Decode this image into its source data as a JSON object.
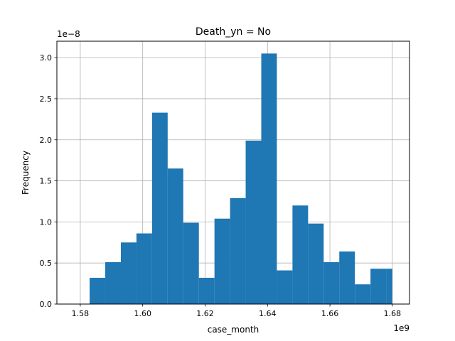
{
  "chart_data": {
    "type": "bar",
    "title": "Death_yn = No",
    "xlabel": "case_month",
    "ylabel": "Frequency",
    "x_offset_label": "1e9",
    "y_offset_label": "1e−8",
    "xlim": [
      1.5725,
      1.6855
    ],
    "ylim": [
      0.0,
      3.2
    ],
    "x_ticks": [
      1.58,
      1.6,
      1.62,
      1.64,
      1.66,
      1.68
    ],
    "x_tick_labels": [
      "1.58",
      "1.60",
      "1.62",
      "1.64",
      "1.66",
      "1.68"
    ],
    "y_ticks": [
      0.0,
      0.5,
      1.0,
      1.5,
      2.0,
      2.5,
      3.0
    ],
    "y_tick_labels": [
      "0.0",
      "0.5",
      "1.0",
      "1.5",
      "2.0",
      "2.5",
      "3.0"
    ],
    "grid": true,
    "bar_color": "#1f77b4",
    "bin_edges": [
      1.583,
      1.588,
      1.593,
      1.598,
      1.603,
      1.608,
      1.613,
      1.618,
      1.623,
      1.628,
      1.633,
      1.638,
      1.643,
      1.648,
      1.653,
      1.658,
      1.663,
      1.668,
      1.673,
      1.678,
      1.68
    ],
    "values": [
      0.32,
      0.51,
      0.75,
      0.86,
      2.33,
      1.65,
      0.99,
      0.32,
      1.04,
      1.29,
      1.99,
      3.05,
      0.41,
      1.2,
      0.98,
      0.51,
      0.64,
      0.24,
      0.43,
      0.43
    ]
  }
}
